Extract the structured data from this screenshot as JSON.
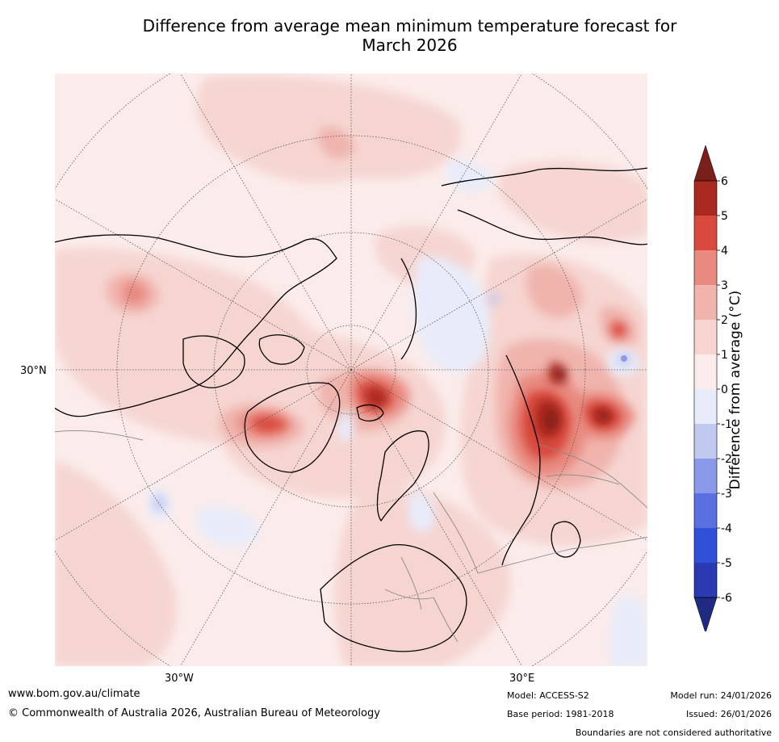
{
  "title_line1": "Difference from average mean minimum temperature forecast for",
  "title_line2": "March 2026",
  "map": {
    "lat_label": "30°N",
    "lon_labels": [
      "30°W",
      "30°E"
    ]
  },
  "colorbar": {
    "title": "Difference from average (°C)",
    "ticks": [
      "6",
      "5",
      "4",
      "3",
      "2",
      "1",
      "0",
      "-1",
      "-2",
      "-3",
      "-4",
      "-5",
      "-6"
    ],
    "colors": [
      "#7a1f1a",
      "#a9281f",
      "#d94a3e",
      "#e88a80",
      "#f0b4ad",
      "#f6d5d1",
      "#fbeceb",
      "#e8ecfa",
      "#c1c9f1",
      "#8b9ae8",
      "#5a6fe0",
      "#2f51d9",
      "#2a3ab0",
      "#1f2b80"
    ],
    "high_color": "#7a1f1a",
    "low_color": "#1f2b80"
  },
  "footer": {
    "website": "www.bom.gov.au/climate",
    "copyright": "© Commonwealth of Australia 2026, Australian Bureau of Meteorology",
    "model": "Model: ACCESS-S2",
    "base_period": "Base period: 1981-2018",
    "model_run": "Model run: 24/01/2026",
    "issued": "Issued: 26/01/2026",
    "disclaimer": "Boundaries are not considered authoritative"
  }
}
